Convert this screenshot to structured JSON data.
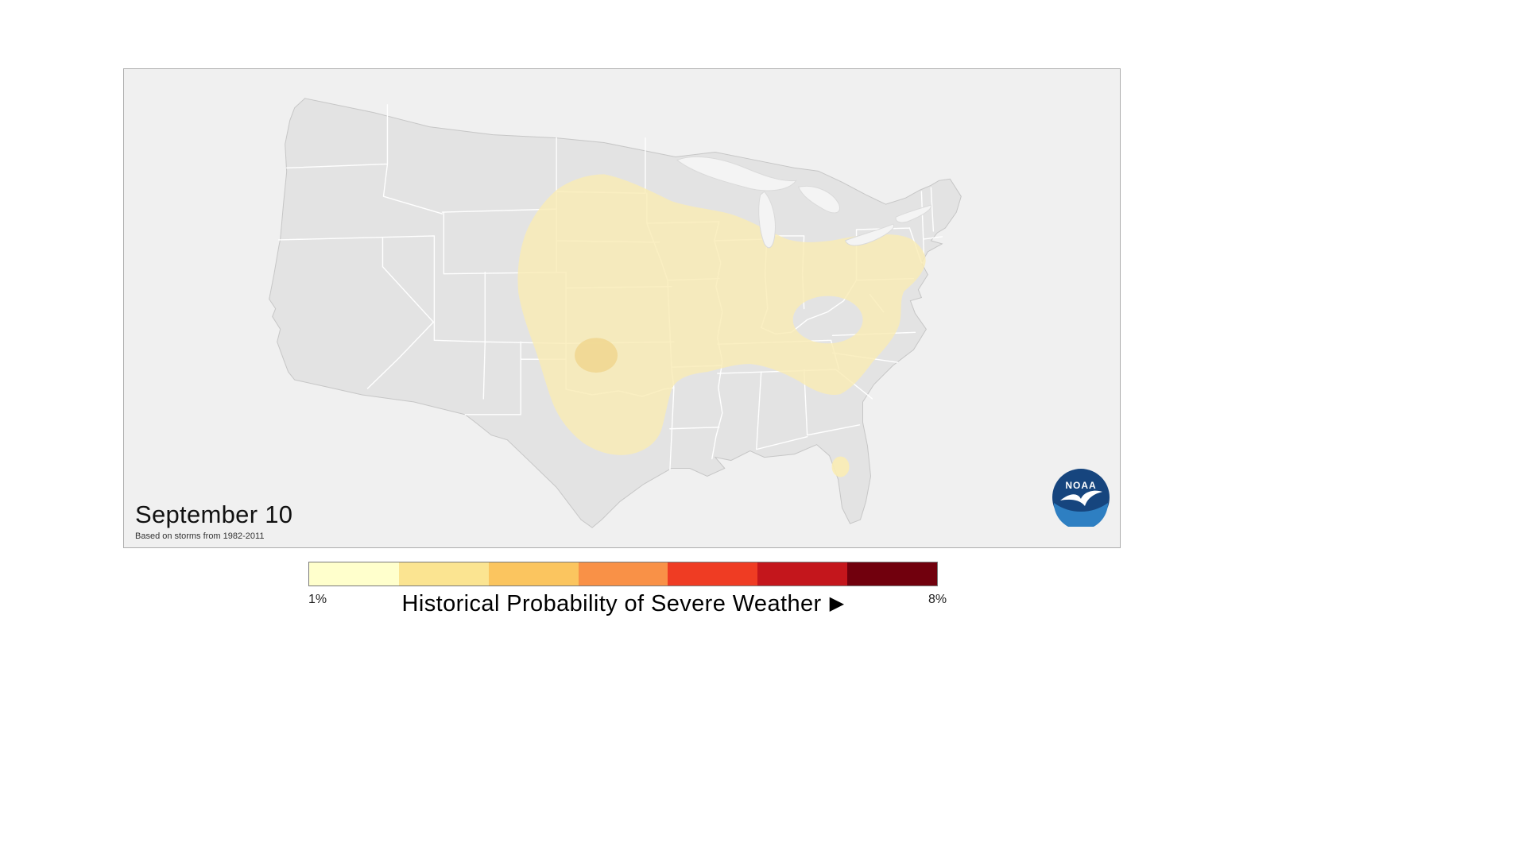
{
  "map_panel": {
    "date_label": "September 10",
    "source_note": "Based on storms from 1982-2011",
    "background": "#f0f0f0",
    "land_color": "#e3e3e3",
    "state_line_color": "#ffffff",
    "highlight": {
      "fill": "#f9ecb4",
      "inner_spot_fill": "#f0d894",
      "description": "shaded band of low severe-weather probability over the Plains, Midwest, Ohio Valley, Mid-Atlantic and Tennessee valley with a small spot over central Florida and a slightly higher core over western Oklahoma"
    },
    "noaa_logo": {
      "label": "NOAA",
      "circle_dark": "#16457e",
      "circle_light": "#2e7fc2"
    }
  },
  "legend": {
    "min_label": "1%",
    "max_label": "8%",
    "title": "Historical Probability of Severe Weather",
    "arrow": "▶",
    "colors": [
      "#FFFFCC",
      "#FBE491",
      "#FBC55F",
      "#F99147",
      "#EF3C23",
      "#C4161C",
      "#71000D"
    ]
  }
}
